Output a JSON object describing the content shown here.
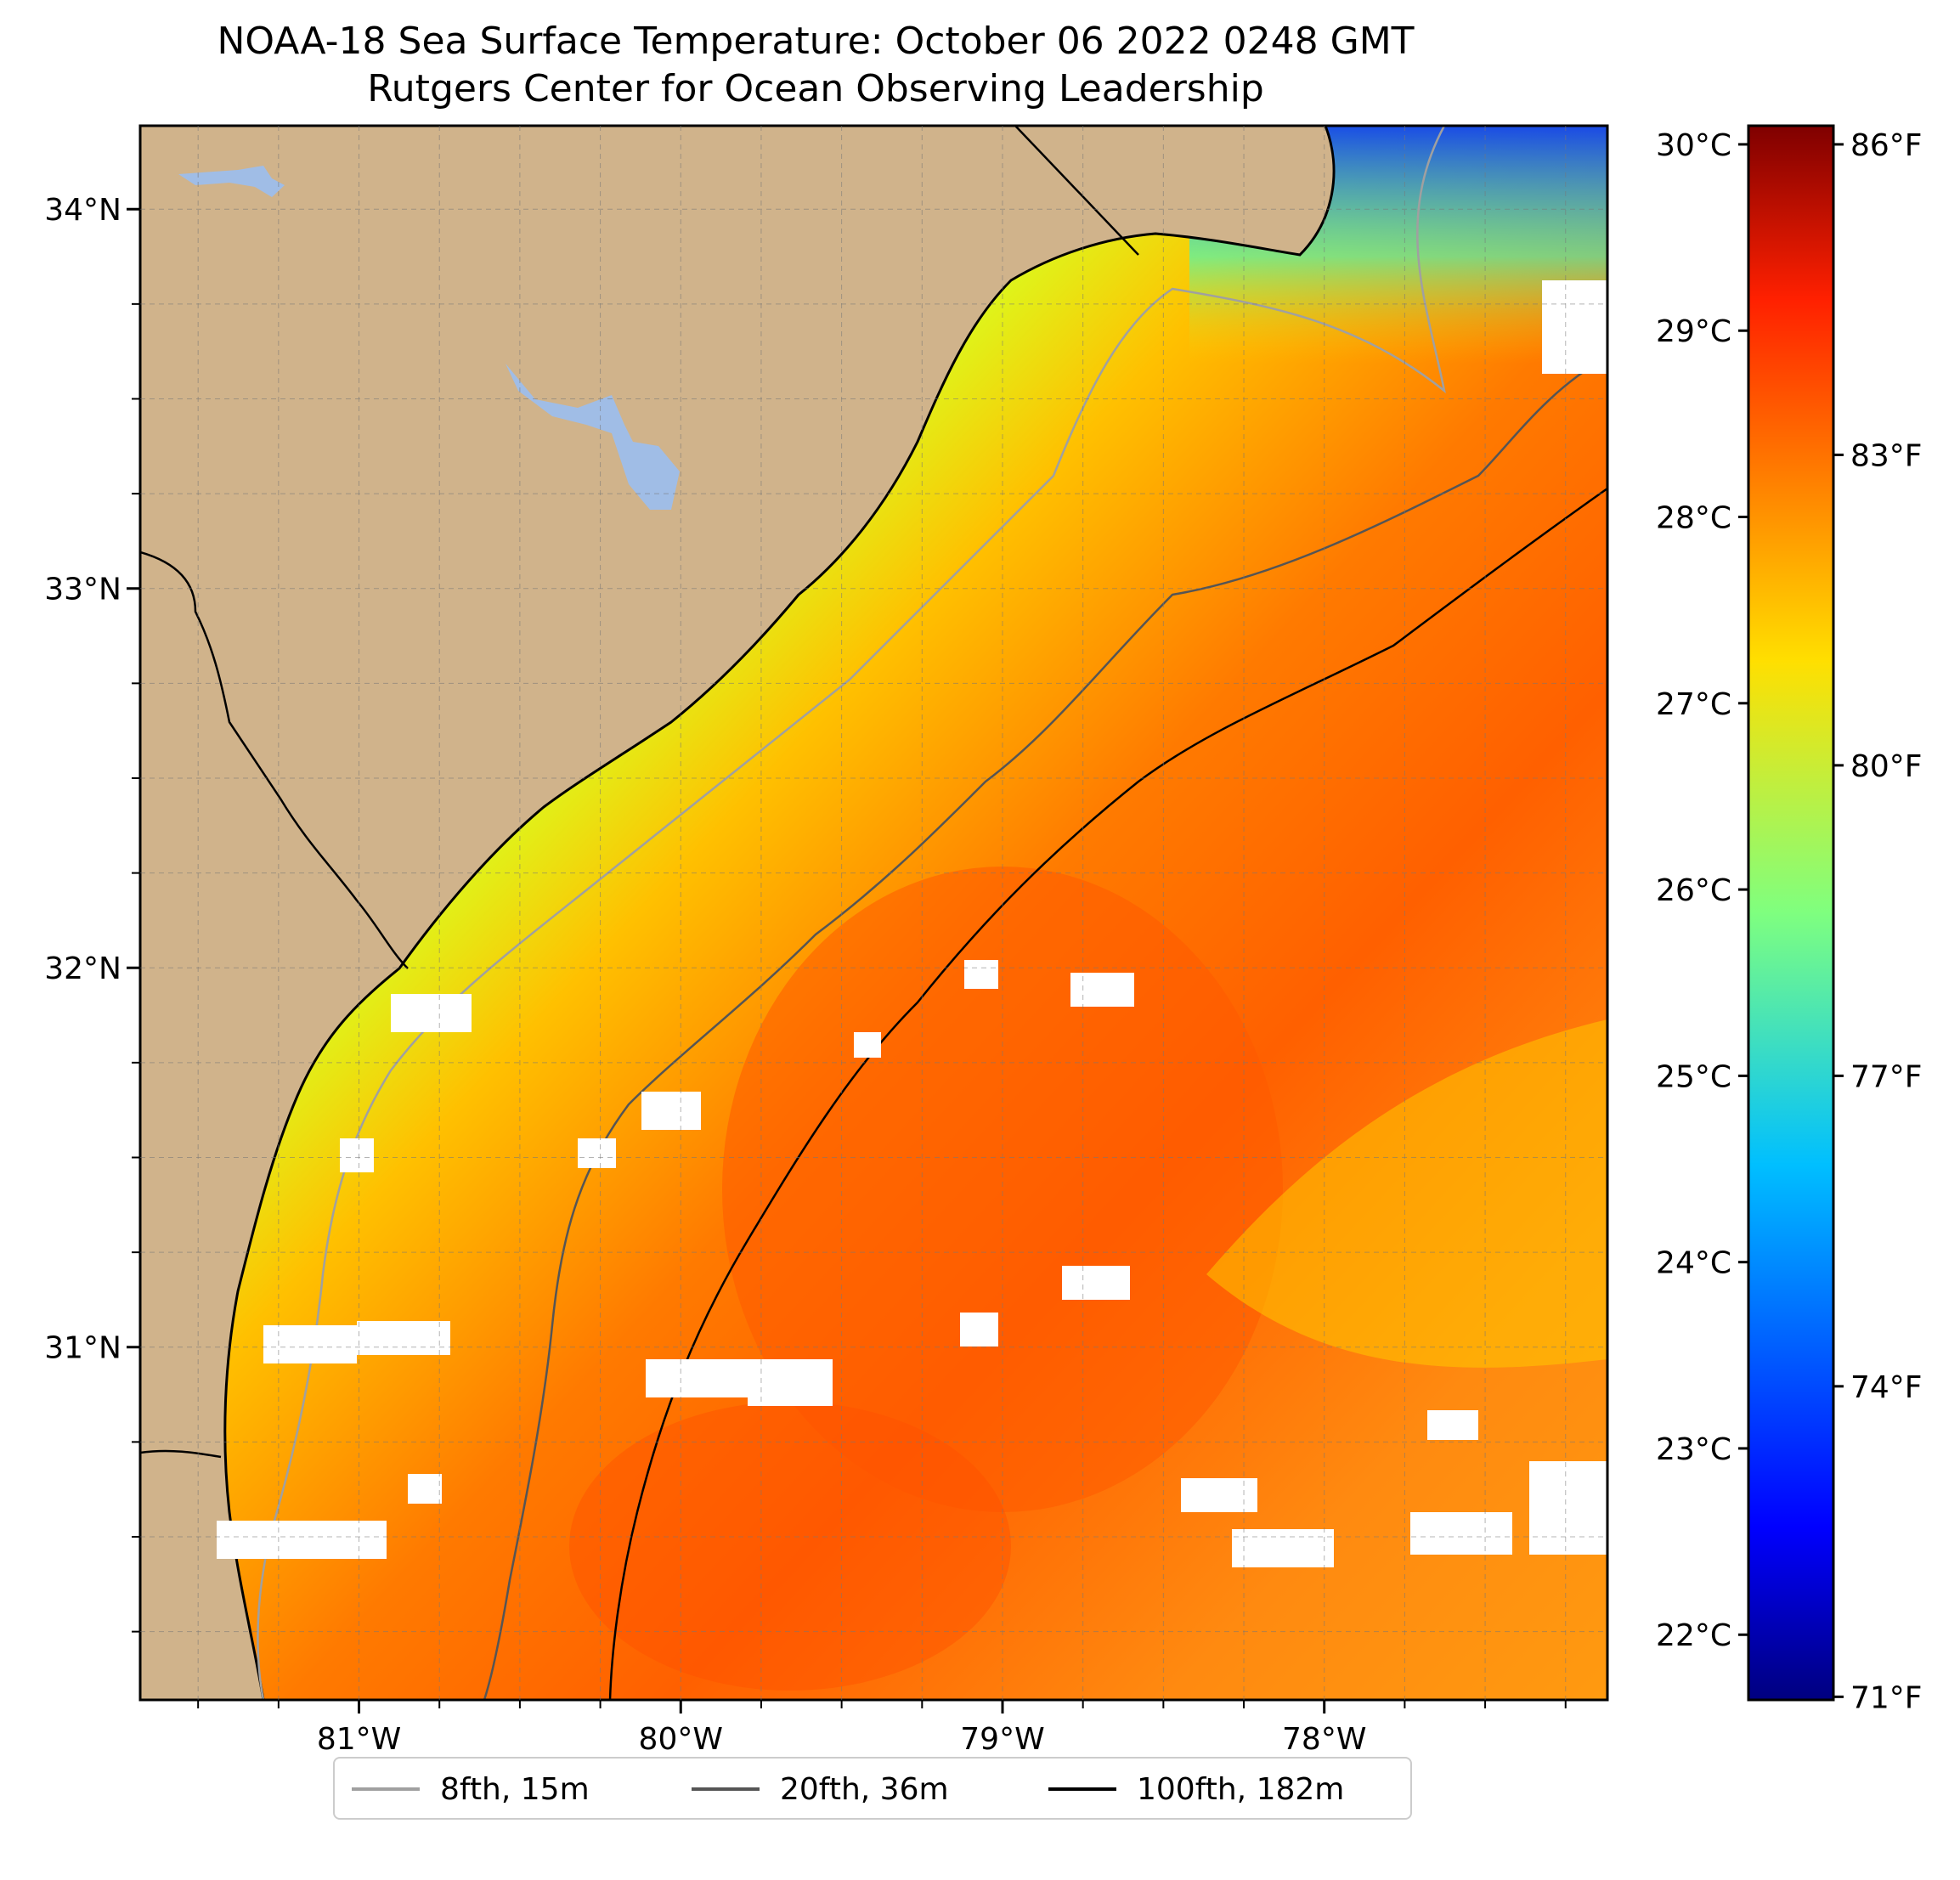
{
  "title": {
    "line1": "NOAA-18 Sea Surface Temperature: October 06 2022 0248 GMT",
    "line2": "Rutgers Center for Ocean Observing Leadership"
  },
  "map": {
    "lon_range": [
      -81.68,
      -77.12
    ],
    "lat_range": [
      30.07,
      34.22
    ],
    "lat_ticks": [
      {
        "value": 34,
        "label": "34°N"
      },
      {
        "value": 33,
        "label": "33°N"
      },
      {
        "value": 32,
        "label": "32°N"
      },
      {
        "value": 31,
        "label": "31°N"
      }
    ],
    "lon_ticks": [
      {
        "value": -81,
        "label": "81°W"
      },
      {
        "value": -80,
        "label": "80°W"
      },
      {
        "value": -79,
        "label": "79°W"
      },
      {
        "value": -78,
        "label": "78°W"
      }
    ],
    "gridlines": "dashed",
    "land_color": "#d0b38b",
    "lake_color": "#a0bde6",
    "no_data_color": "#ffffff"
  },
  "colorbar": {
    "colormap": "jet",
    "celsius_ticks": [
      {
        "value": 30,
        "label": "30°C"
      },
      {
        "value": 29,
        "label": "29°C"
      },
      {
        "value": 28,
        "label": "28°C"
      },
      {
        "value": 27,
        "label": "27°C"
      },
      {
        "value": 26,
        "label": "26°C"
      },
      {
        "value": 25,
        "label": "25°C"
      },
      {
        "value": 24,
        "label": "24°C"
      },
      {
        "value": 23,
        "label": "23°C"
      },
      {
        "value": 22,
        "label": "22°C"
      }
    ],
    "fahrenheit_ticks": [
      {
        "value": 86,
        "label": "86°F"
      },
      {
        "value": 83,
        "label": "83°F"
      },
      {
        "value": 80,
        "label": "80°F"
      },
      {
        "value": 77,
        "label": "77°F"
      },
      {
        "value": 74,
        "label": "74°F"
      },
      {
        "value": 71,
        "label": "71°F"
      }
    ]
  },
  "legend": {
    "items": [
      {
        "label": "8fth, 15m",
        "color": "#a0a0a0"
      },
      {
        "label": "20fth, 36m",
        "color": "#555555"
      },
      {
        "label": "100fth, 182m",
        "color": "#000000"
      }
    ]
  }
}
